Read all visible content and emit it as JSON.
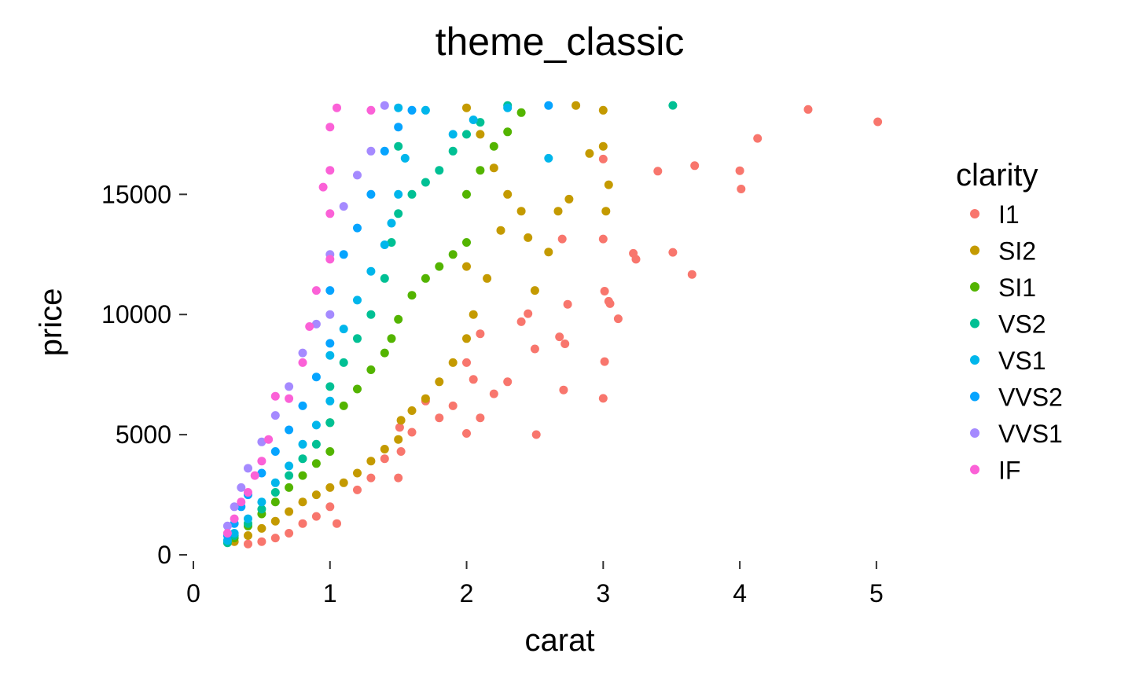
{
  "chart_data": {
    "type": "scatter",
    "title": "theme_classic",
    "xlabel": "carat",
    "ylabel": "price",
    "xlim": [
      0,
      5.3
    ],
    "ylim": [
      0,
      19000
    ],
    "x_ticks": [
      0,
      1,
      2,
      3,
      4,
      5
    ],
    "y_ticks": [
      0,
      5000,
      10000,
      15000
    ],
    "x_tick_labels": [
      "0",
      "1",
      "2",
      "3",
      "4",
      "5"
    ],
    "y_tick_labels": [
      "0",
      "5000",
      "10000",
      "15000"
    ],
    "grid": false,
    "axis_lines": false,
    "legend": {
      "title": "clarity",
      "position": "right"
    },
    "series": [
      {
        "name": "I1",
        "color": "#F8766D",
        "points": [
          [
            5.01,
            18018
          ],
          [
            4.5,
            18531
          ],
          [
            4.13,
            17329
          ],
          [
            4.01,
            15223
          ],
          [
            4.0,
            15984
          ],
          [
            3.67,
            16193
          ],
          [
            3.65,
            11668
          ],
          [
            3.51,
            12587
          ],
          [
            3.4,
            15964
          ],
          [
            3.24,
            12300
          ],
          [
            3.22,
            12545
          ],
          [
            3.11,
            9823
          ],
          [
            3.05,
            10453
          ],
          [
            3.04,
            10551
          ],
          [
            3.01,
            10970
          ],
          [
            3.01,
            8040
          ],
          [
            3.0,
            6512
          ],
          [
            3.0,
            16469
          ],
          [
            3.0,
            13142
          ],
          [
            2.74,
            10424
          ],
          [
            2.7,
            13143
          ],
          [
            2.71,
            6861
          ],
          [
            2.72,
            8780
          ],
          [
            2.68,
            9070
          ],
          [
            2.51,
            5002
          ],
          [
            2.5,
            8568
          ],
          [
            2.45,
            10035
          ],
          [
            2.4,
            9700
          ],
          [
            2.3,
            7200
          ],
          [
            2.2,
            6700
          ],
          [
            2.1,
            5700
          ],
          [
            2.05,
            7300
          ],
          [
            2.0,
            5051
          ],
          [
            2.0,
            8000
          ],
          [
            2.1,
            9200
          ],
          [
            1.9,
            6200
          ],
          [
            1.8,
            5700
          ],
          [
            1.7,
            6400
          ],
          [
            1.6,
            5100
          ],
          [
            1.5,
            3200
          ],
          [
            1.52,
            4300
          ],
          [
            1.51,
            5300
          ],
          [
            1.4,
            4000
          ],
          [
            1.3,
            3200
          ],
          [
            1.2,
            2700
          ],
          [
            1.05,
            1300
          ],
          [
            1.0,
            2000
          ],
          [
            0.9,
            1600
          ],
          [
            0.8,
            1300
          ],
          [
            0.7,
            900
          ],
          [
            0.6,
            700
          ],
          [
            0.5,
            550
          ],
          [
            0.4,
            450
          ]
        ]
      },
      {
        "name": "SI2",
        "color": "#C49A00",
        "points": [
          [
            2.8,
            18700
          ],
          [
            3.0,
            18500
          ],
          [
            2.9,
            16700
          ],
          [
            3.0,
            17000
          ],
          [
            3.02,
            14300
          ],
          [
            3.04,
            15400
          ],
          [
            2.75,
            14800
          ],
          [
            2.67,
            14300
          ],
          [
            2.6,
            12600
          ],
          [
            2.5,
            11000
          ],
          [
            2.45,
            13200
          ],
          [
            2.4,
            14300
          ],
          [
            2.3,
            15000
          ],
          [
            2.2,
            16100
          ],
          [
            2.1,
            17500
          ],
          [
            2.0,
            18600
          ],
          [
            2.0,
            12000
          ],
          [
            2.05,
            10000
          ],
          [
            2.15,
            11500
          ],
          [
            2.25,
            13500
          ],
          [
            2.0,
            9000
          ],
          [
            1.9,
            8000
          ],
          [
            1.8,
            7200
          ],
          [
            1.7,
            6500
          ],
          [
            1.6,
            6000
          ],
          [
            1.52,
            5600
          ],
          [
            1.5,
            4800
          ],
          [
            1.4,
            4400
          ],
          [
            1.3,
            3900
          ],
          [
            1.2,
            3400
          ],
          [
            1.1,
            3000
          ],
          [
            1.0,
            2800
          ],
          [
            0.9,
            2500
          ],
          [
            0.8,
            2200
          ],
          [
            0.7,
            1800
          ],
          [
            0.6,
            1400
          ],
          [
            0.5,
            1100
          ],
          [
            0.4,
            800
          ],
          [
            0.3,
            550
          ]
        ]
      },
      {
        "name": "SI1",
        "color": "#53B400",
        "points": [
          [
            2.4,
            18400
          ],
          [
            2.3,
            17600
          ],
          [
            2.2,
            17000
          ],
          [
            2.1,
            16000
          ],
          [
            2.0,
            15000
          ],
          [
            2.0,
            13000
          ],
          [
            1.9,
            12500
          ],
          [
            1.8,
            12000
          ],
          [
            1.7,
            11500
          ],
          [
            1.6,
            10800
          ],
          [
            1.5,
            9800
          ],
          [
            1.45,
            9000
          ],
          [
            1.4,
            8400
          ],
          [
            1.3,
            7700
          ],
          [
            1.2,
            6900
          ],
          [
            1.1,
            6200
          ],
          [
            1.0,
            5500
          ],
          [
            1.0,
            4300
          ],
          [
            0.9,
            3800
          ],
          [
            0.8,
            3300
          ],
          [
            0.7,
            2800
          ],
          [
            0.6,
            2200
          ],
          [
            0.5,
            1700
          ],
          [
            0.4,
            1200
          ],
          [
            0.3,
            700
          ]
        ]
      },
      {
        "name": "VS2",
        "color": "#00C094",
        "points": [
          [
            3.51,
            18701
          ],
          [
            2.3,
            18700
          ],
          [
            2.1,
            18000
          ],
          [
            2.0,
            17500
          ],
          [
            1.9,
            16800
          ],
          [
            1.8,
            16000
          ],
          [
            1.7,
            15500
          ],
          [
            1.6,
            15000
          ],
          [
            1.5,
            17000
          ],
          [
            1.5,
            14200
          ],
          [
            1.45,
            13000
          ],
          [
            1.4,
            11500
          ],
          [
            1.3,
            10000
          ],
          [
            1.2,
            9000
          ],
          [
            1.1,
            8000
          ],
          [
            1.0,
            7000
          ],
          [
            1.0,
            5500
          ],
          [
            0.9,
            4600
          ],
          [
            0.8,
            4000
          ],
          [
            0.7,
            3300
          ],
          [
            0.6,
            2600
          ],
          [
            0.5,
            1900
          ],
          [
            0.4,
            1300
          ],
          [
            0.3,
            800
          ],
          [
            0.25,
            500
          ]
        ]
      },
      {
        "name": "VS1",
        "color": "#00B6EB",
        "points": [
          [
            2.6,
            16500
          ],
          [
            2.3,
            18600
          ],
          [
            2.05,
            18100
          ],
          [
            1.9,
            17500
          ],
          [
            1.7,
            18500
          ],
          [
            1.5,
            18600
          ],
          [
            1.55,
            16500
          ],
          [
            1.5,
            15000
          ],
          [
            1.45,
            13800
          ],
          [
            1.4,
            12900
          ],
          [
            1.3,
            11800
          ],
          [
            1.2,
            10600
          ],
          [
            1.1,
            9400
          ],
          [
            1.0,
            8300
          ],
          [
            1.0,
            6400
          ],
          [
            0.9,
            5400
          ],
          [
            0.8,
            4600
          ],
          [
            0.7,
            3700
          ],
          [
            0.6,
            3000
          ],
          [
            0.5,
            2200
          ],
          [
            0.4,
            1500
          ],
          [
            0.3,
            900
          ],
          [
            0.25,
            600
          ]
        ]
      },
      {
        "name": "VVS2",
        "color": "#06A4FF",
        "points": [
          [
            2.6,
            18700
          ],
          [
            1.6,
            18500
          ],
          [
            1.5,
            17800
          ],
          [
            1.4,
            16800
          ],
          [
            1.3,
            15000
          ],
          [
            1.2,
            13600
          ],
          [
            1.1,
            12500
          ],
          [
            1.0,
            11000
          ],
          [
            1.0,
            8800
          ],
          [
            0.9,
            7400
          ],
          [
            0.8,
            6200
          ],
          [
            0.7,
            5200
          ],
          [
            0.6,
            4300
          ],
          [
            0.5,
            3400
          ],
          [
            0.4,
            2500
          ],
          [
            0.35,
            2000
          ],
          [
            0.3,
            1300
          ],
          [
            0.25,
            800
          ]
        ]
      },
      {
        "name": "VVS1",
        "color": "#A58AFF",
        "points": [
          [
            1.4,
            18700
          ],
          [
            1.3,
            16800
          ],
          [
            1.2,
            15800
          ],
          [
            1.1,
            14500
          ],
          [
            1.0,
            12500
          ],
          [
            1.0,
            10000
          ],
          [
            0.9,
            9600
          ],
          [
            0.8,
            8400
          ],
          [
            0.7,
            7000
          ],
          [
            0.6,
            5800
          ],
          [
            0.5,
            4700
          ],
          [
            0.4,
            3600
          ],
          [
            0.35,
            2800
          ],
          [
            0.3,
            2000
          ],
          [
            0.25,
            1200
          ]
        ]
      },
      {
        "name": "IF",
        "color": "#FB61D7",
        "points": [
          [
            1.3,
            18500
          ],
          [
            1.05,
            18600
          ],
          [
            1.0,
            17800
          ],
          [
            1.0,
            16000
          ],
          [
            0.95,
            15300
          ],
          [
            1.0,
            14200
          ],
          [
            1.0,
            12300
          ],
          [
            0.9,
            11000
          ],
          [
            0.85,
            9500
          ],
          [
            0.8,
            8000
          ],
          [
            0.7,
            6500
          ],
          [
            0.6,
            6600
          ],
          [
            0.55,
            4800
          ],
          [
            0.5,
            3900
          ],
          [
            0.45,
            3300
          ],
          [
            0.4,
            2600
          ],
          [
            0.35,
            2200
          ],
          [
            0.3,
            1500
          ],
          [
            0.25,
            900
          ]
        ]
      }
    ]
  }
}
